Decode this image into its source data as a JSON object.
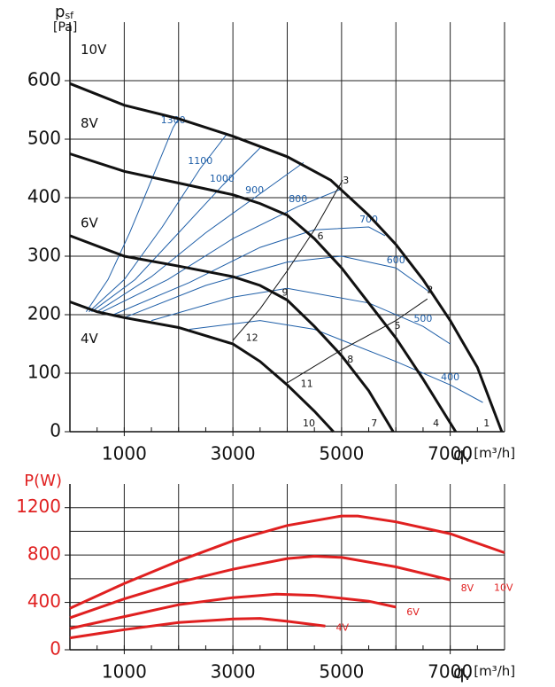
{
  "chart_data": [
    {
      "type": "line",
      "y_label": {
        "main": "p",
        "sub": "sf"
      },
      "y_unit": "[Pa]",
      "x_label": {
        "main": "q",
        "sub": "v",
        "unit": "[m³/h]"
      },
      "xlim": [
        0,
        8000
      ],
      "xticks": [
        1000,
        3000,
        5000,
        7000
      ],
      "x_grid": [
        1000,
        2000,
        3000,
        4000,
        5000,
        6000,
        7000
      ],
      "ylim": [
        0,
        700
      ],
      "yticks": [
        0,
        100,
        200,
        300,
        400,
        500,
        600
      ],
      "y_grid": [
        100,
        200,
        300,
        400,
        500,
        600
      ],
      "color": "#111111",
      "series": [
        {
          "name": "10V",
          "x": [
            0,
            1000,
            2000,
            3000,
            4000,
            4800,
            5500,
            6000,
            6500,
            7000,
            7500,
            7950
          ],
          "values": [
            595,
            558,
            535,
            505,
            470,
            430,
            370,
            320,
            260,
            190,
            110,
            0
          ]
        },
        {
          "name": "8V",
          "x": [
            0,
            1000,
            2000,
            3000,
            3500,
            4000,
            4500,
            5000,
            5500,
            6000,
            6500,
            7100
          ],
          "values": [
            475,
            445,
            425,
            405,
            390,
            370,
            330,
            280,
            220,
            160,
            90,
            0
          ]
        },
        {
          "name": "6V",
          "x": [
            0,
            1000,
            2000,
            3000,
            3500,
            4000,
            4500,
            5000,
            5500,
            5950
          ],
          "values": [
            335,
            300,
            283,
            265,
            250,
            225,
            180,
            130,
            70,
            0
          ]
        },
        {
          "name": "4V",
          "x": [
            0,
            500,
            1000,
            2000,
            3000,
            3500,
            4000,
            4500,
            4850
          ],
          "values": [
            222,
            205,
            195,
            178,
            150,
            120,
            80,
            35,
            0
          ]
        }
      ],
      "iso_color": "#1f5fa8",
      "iso_lines": [
        {
          "name": "1300",
          "x": [
            300,
            700,
            1100,
            1500,
            1900,
            2000
          ],
          "values": [
            205,
            260,
            340,
            430,
            520,
            535
          ]
        },
        {
          "name": "1100",
          "x": [
            350,
            1000,
            1700,
            2400,
            2900
          ],
          "values": [
            205,
            260,
            350,
            450,
            510
          ]
        },
        {
          "name": "1000",
          "x": [
            400,
            1200,
            2000,
            2800,
            3500
          ],
          "values": [
            205,
            260,
            340,
            420,
            485
          ]
        },
        {
          "name": "900",
          "x": [
            500,
            1500,
            2500,
            3400,
            4300
          ],
          "values": [
            205,
            265,
            340,
            400,
            460
          ]
        },
        {
          "name": "800",
          "x": [
            600,
            1800,
            3000,
            4200,
            5000
          ],
          "values": [
            205,
            260,
            330,
            385,
            415
          ]
        },
        {
          "name": "700",
          "x": [
            800,
            2200,
            3500,
            4500,
            5500,
            5800
          ],
          "values": [
            200,
            255,
            315,
            345,
            350,
            335
          ]
        },
        {
          "name": "600",
          "x": [
            1000,
            2500,
            4000,
            5000,
            6000,
            6600
          ],
          "values": [
            195,
            250,
            290,
            300,
            280,
            240
          ]
        },
        {
          "name": "500",
          "x": [
            1500,
            3000,
            4000,
            5500,
            6500,
            7000
          ],
          "values": [
            190,
            230,
            245,
            220,
            180,
            150
          ]
        },
        {
          "name": "400",
          "x": [
            2200,
            3500,
            4500,
            6000,
            7000,
            7600
          ],
          "values": [
            175,
            190,
            175,
            120,
            80,
            50
          ]
        }
      ],
      "system_lines": [
        {
          "x": [
            3000,
            3500,
            4000,
            4500,
            5020
          ],
          "values": [
            156,
            210,
            275,
            345,
            430
          ]
        },
        {
          "x": [
            3970,
            5000,
            6000,
            6580
          ],
          "values": [
            82,
            140,
            190,
            227
          ]
        }
      ],
      "points": [
        {
          "label": "1",
          "x": 7670,
          "y": 14
        },
        {
          "label": "2",
          "x": 6630,
          "y": 242
        },
        {
          "label": "3",
          "x": 5080,
          "y": 429
        },
        {
          "label": "4",
          "x": 6740,
          "y": 14
        },
        {
          "label": "5",
          "x": 6030,
          "y": 180
        },
        {
          "label": "6",
          "x": 4610,
          "y": 333
        },
        {
          "label": "7",
          "x": 5600,
          "y": 14
        },
        {
          "label": "8",
          "x": 5160,
          "y": 123
        },
        {
          "label": "9",
          "x": 3960,
          "y": 237
        },
        {
          "label": "10",
          "x": 4400,
          "y": 14
        },
        {
          "label": "11",
          "x": 4360,
          "y": 81
        },
        {
          "label": "12",
          "x": 3350,
          "y": 160
        }
      ]
    },
    {
      "type": "line",
      "y_label": "P(W)",
      "x_label": {
        "main": "q",
        "sub": "v",
        "unit": "[m³/h]"
      },
      "xlim": [
        0,
        8000
      ],
      "xticks": [
        1000,
        3000,
        5000,
        7000
      ],
      "x_grid": [
        1000,
        2000,
        3000,
        4000,
        5000,
        6000,
        7000
      ],
      "ylim": [
        0,
        1400
      ],
      "yticks": [
        0,
        400,
        800,
        1200
      ],
      "y_grid": [
        200,
        400,
        600,
        800,
        1000,
        1200
      ],
      "color": "#e02020",
      "series": [
        {
          "name": "10V",
          "x": [
            0,
            1000,
            2000,
            3000,
            4000,
            5000,
            5300,
            6000,
            7000,
            8000
          ],
          "values": [
            350,
            560,
            750,
            920,
            1050,
            1130,
            1130,
            1080,
            980,
            820
          ]
        },
        {
          "name": "8V",
          "x": [
            0,
            1000,
            2000,
            3000,
            4000,
            4500,
            5000,
            6000,
            7000
          ],
          "values": [
            270,
            430,
            570,
            680,
            770,
            790,
            780,
            700,
            590
          ]
        },
        {
          "name": "6V",
          "x": [
            0,
            1000,
            2000,
            3000,
            3800,
            4500,
            5500,
            6000
          ],
          "values": [
            180,
            280,
            380,
            440,
            470,
            460,
            410,
            360
          ]
        },
        {
          "name": "4V",
          "x": [
            0,
            1000,
            2000,
            3000,
            3500,
            4000,
            4700
          ],
          "values": [
            100,
            170,
            230,
            260,
            265,
            240,
            200
          ]
        }
      ]
    }
  ]
}
